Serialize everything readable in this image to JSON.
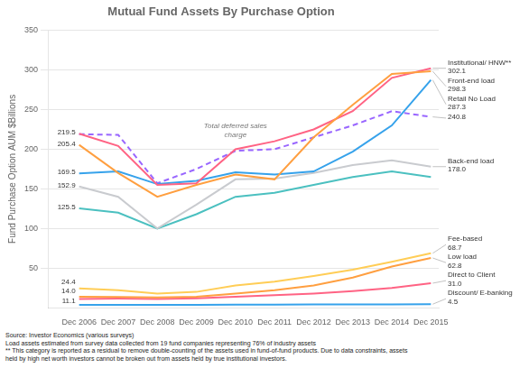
{
  "chart_data": {
    "type": "line",
    "title": "Mutual Fund Assets By Purchase Option",
    "ylabel": "Fund Purchase Option AUM $Billions",
    "categories": [
      "Dec 2006",
      "Dec 2007",
      "Dec 2008",
      "Dec 2009",
      "Dec 2010",
      "Dec 2011",
      "Dec 2012",
      "Dec 2013",
      "Dec 2014",
      "Dec 2015"
    ],
    "series": [
      {
        "name": "Discount/E-banking",
        "line_style": "solid",
        "values": [
          3.5,
          3.5,
          3.5,
          3.6,
          3.8,
          4.0,
          4.1,
          4.2,
          4.3,
          4.5
        ]
      },
      {
        "name": "Direct to Client",
        "line_style": "solid",
        "values": [
          11.1,
          11.5,
          11.0,
          12.0,
          14.0,
          16.0,
          18.0,
          21.0,
          25.0,
          31.0
        ]
      },
      {
        "name": "Low load",
        "line_style": "solid",
        "values": [
          14.0,
          13.5,
          13.0,
          14.0,
          18.0,
          22.0,
          28.0,
          38.0,
          52.0,
          62.8
        ]
      },
      {
        "name": "Fee-based",
        "line_style": "solid",
        "values": [
          24.4,
          22.0,
          18.0,
          20.0,
          28.0,
          33.0,
          40.0,
          48.0,
          58.0,
          68.7
        ]
      },
      {
        "line_style": "solid",
        "values": [
          125.5,
          120.0,
          100.0,
          118.0,
          140.0,
          145.0,
          155.0,
          165.0,
          172.0,
          165.0
        ]
      },
      {
        "name": "Total deferred sales charge",
        "line_style": "dashed",
        "values": [
          219.0,
          218.0,
          157.0,
          175.0,
          198.0,
          200.0,
          215.0,
          230.0,
          248.0,
          240.8
        ]
      },
      {
        "name": "Back-end load",
        "line_style": "solid",
        "values": [
          152.9,
          140.0,
          100.0,
          130.0,
          162.0,
          163.0,
          170.0,
          180.0,
          186.0,
          178.0
        ]
      },
      {
        "name": "Retail No Load",
        "line_style": "solid",
        "values": [
          169.5,
          172.0,
          156.0,
          160.0,
          171.0,
          168.0,
          172.0,
          197.0,
          230.0,
          287.3
        ]
      },
      {
        "name": "Institutional/HNW**",
        "line_style": "solid",
        "values": [
          219.5,
          204.0,
          155.0,
          157.0,
          200.0,
          210.0,
          225.0,
          248.0,
          290.0,
          302.1
        ]
      },
      {
        "name": "Front-end load",
        "line_style": "solid",
        "values": [
          205.4,
          170.0,
          140.0,
          155.0,
          168.0,
          162.0,
          215.0,
          256.0,
          295.0,
          298.3
        ]
      }
    ],
    "marker": "none",
    "ylim": [
      0,
      350
    ],
    "yticks": [
      50,
      100,
      150,
      200,
      250,
      300,
      350
    ],
    "grid": true,
    "annotations": [
      {
        "text": "Institutional/ HNW**\n302.1",
        "x": "Dec 2015",
        "y": 302.1
      },
      {
        "text": "Front-end load\n298.3",
        "x": "Dec 2015",
        "y": 298.3
      },
      {
        "text": "Retail No Load\n287.3",
        "x": "Dec 2015",
        "y": 287.3
      },
      {
        "text": "240.8",
        "x": "Dec 2015",
        "y": 240.8
      },
      {
        "text": "Back-end load\n178.0",
        "x": "Dec 2015",
        "y": 178.0
      },
      {
        "text": "Fee-based\n68.7",
        "x": "Dec 2015",
        "y": 68.7
      },
      {
        "text": "Low load\n62.8",
        "x": "Dec 2015",
        "y": 62.8
      },
      {
        "text": "Direct to Client\n31.0",
        "x": "Dec 2015",
        "y": 31.0
      },
      {
        "text": "Discount/ E-banking\n4.5",
        "x": "Dec 2015",
        "y": 4.5
      },
      {
        "text": "Total deferred sales\ncharge",
        "x": "Dec 2010",
        "y": 212
      },
      {
        "text": "219.5",
        "x": "Dec 2006",
        "y": 219.5
      },
      {
        "text": "205.4",
        "x": "Dec 2006",
        "y": 205.4
      },
      {
        "text": "169.5",
        "x": "Dec 2006",
        "y": 169.5
      },
      {
        "text": "152.9",
        "x": "Dec 2006",
        "y": 152.9
      },
      {
        "text": "125.5",
        "x": "Dec 2006",
        "y": 125.5
      },
      {
        "text": "24.4",
        "x": "Dec 2006",
        "y": 24.4
      },
      {
        "text": "14.0",
        "x": "Dec 2006",
        "y": 14.0
      },
      {
        "text": "11.1",
        "x": "Dec 2006",
        "y": 11.1
      }
    ],
    "footnotes": [
      "Source: Investor Economics (various surveys)",
      "Load assets estimated from survey data collected from 19 fund companies representing 76% of industry assets",
      "** This category is reported as a residual to remove double-counting of the assets used in fund-of-fund products. Due to data constraints, assets",
      "held by high net worth investors cannot be broken out from assets held by true institutional investors."
    ]
  }
}
